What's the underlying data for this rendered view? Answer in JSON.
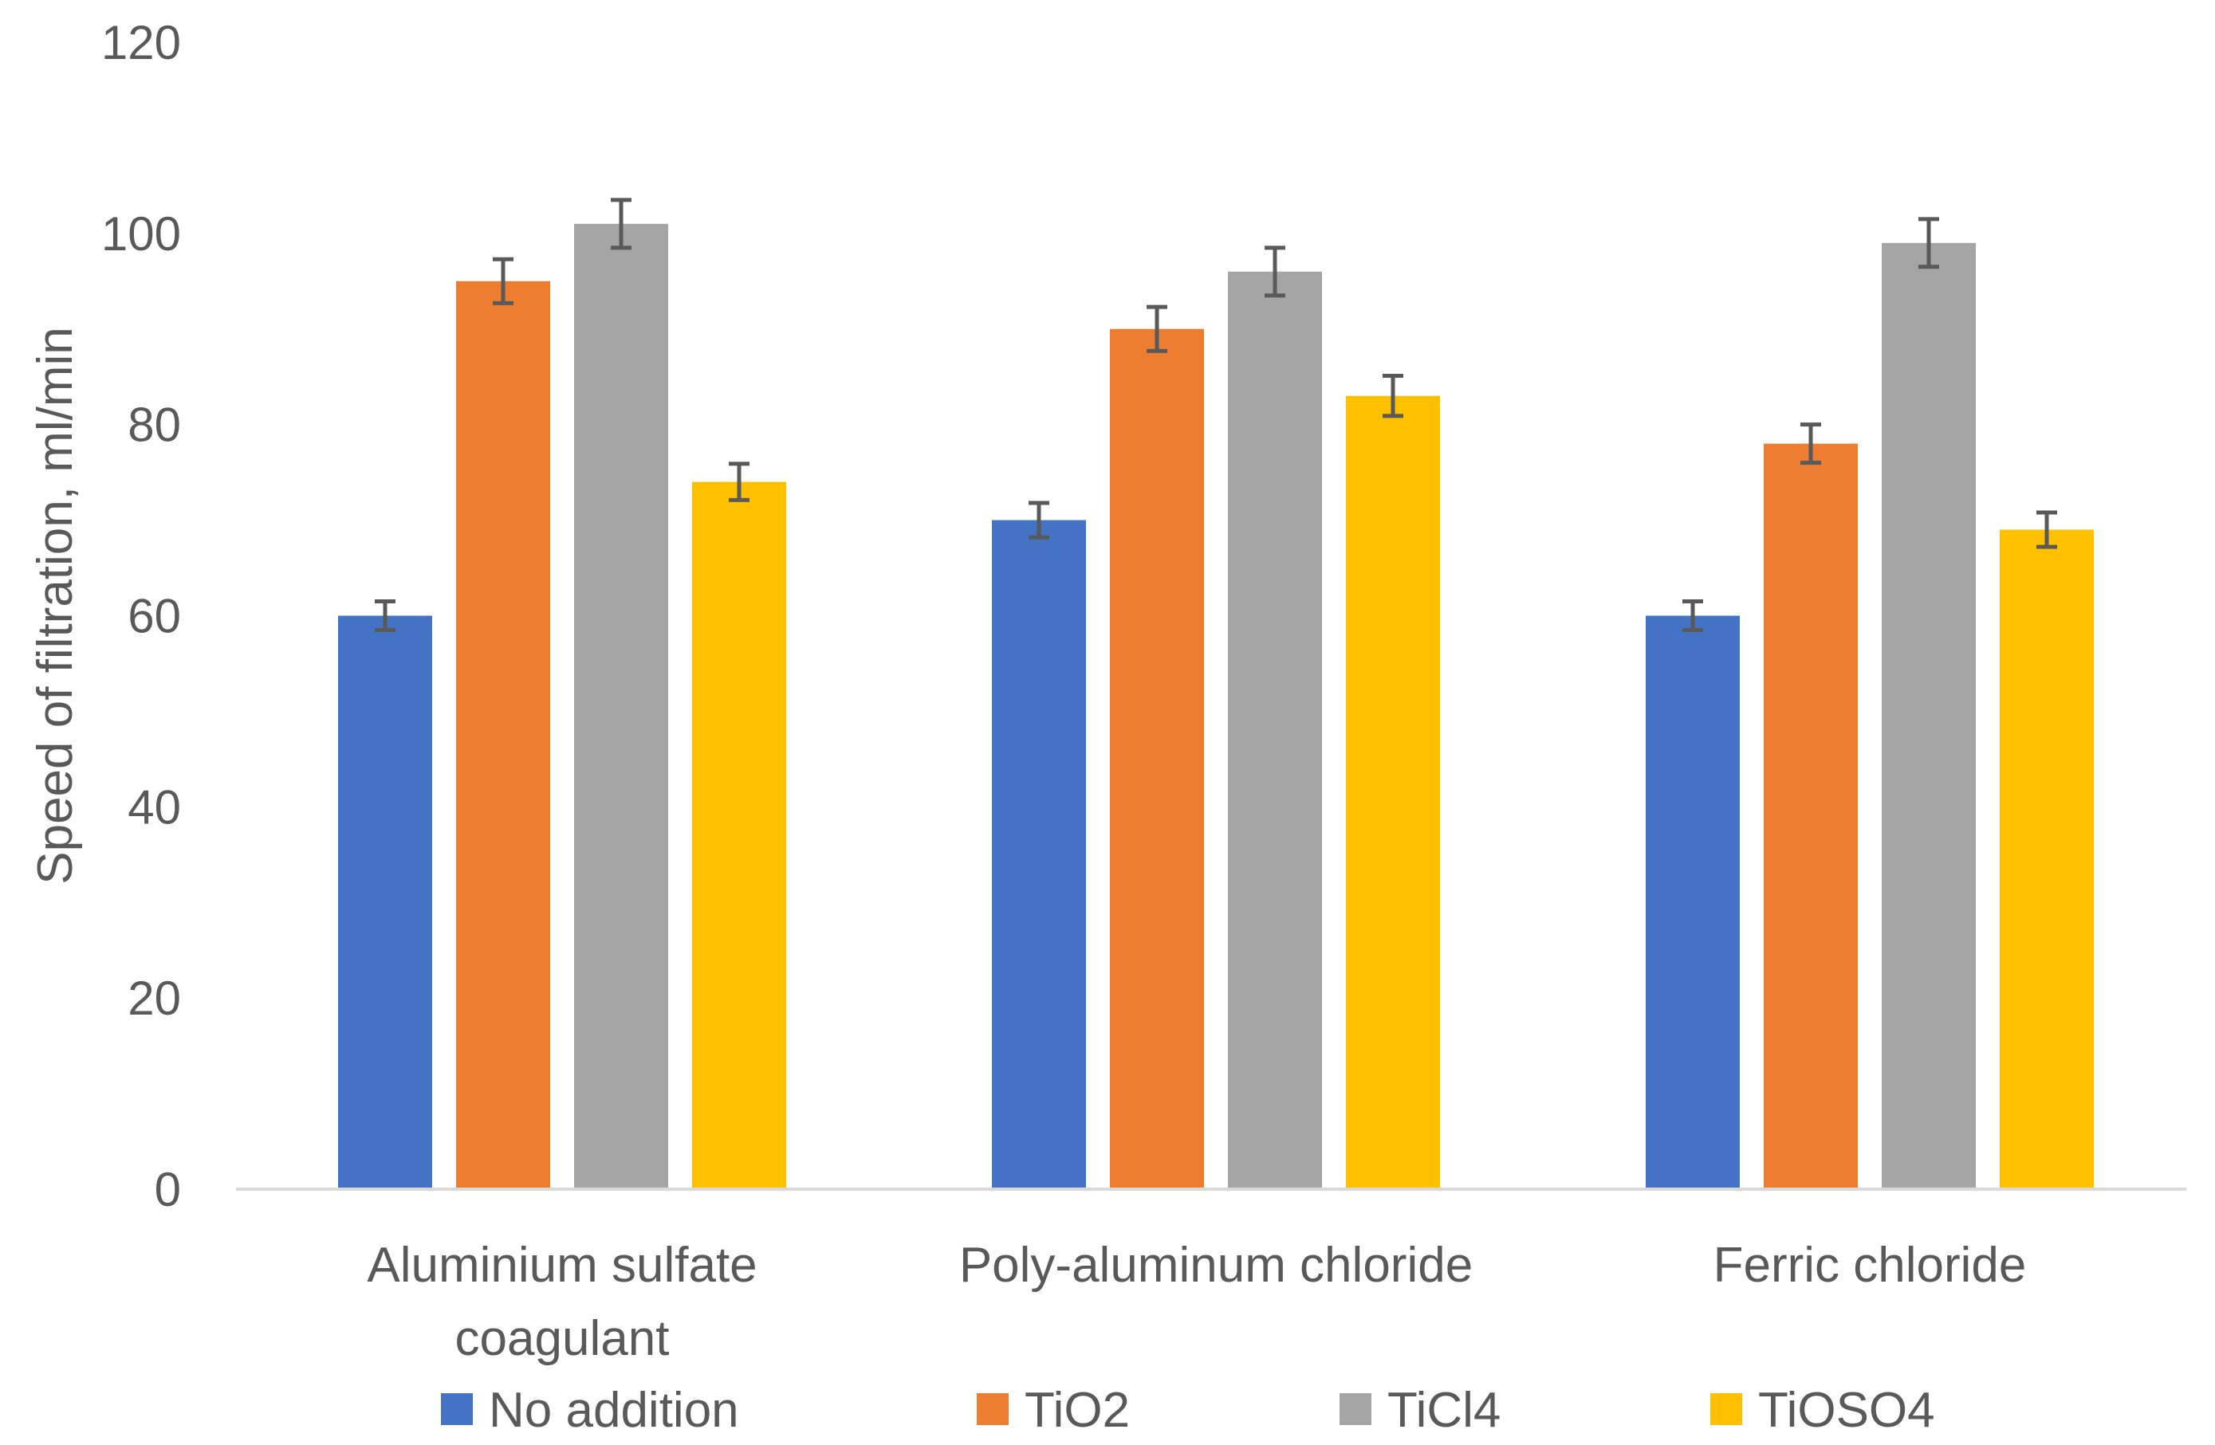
{
  "chart_data": {
    "type": "bar",
    "title": "",
    "xlabel": "",
    "ylabel": "Speed of filtration, ml/min",
    "ylim": [
      0,
      120
    ],
    "yticks": [
      "0",
      "20",
      "40",
      "60",
      "80",
      "100",
      "120"
    ],
    "grid": false,
    "legend_position": "bottom",
    "categories": [
      {
        "line1": "Aluminium sulfate",
        "line2": "coagulant"
      },
      {
        "line1": "Poly-aluminum chloride",
        "line2": ""
      },
      {
        "line1": "Ferric chloride",
        "line2": ""
      }
    ],
    "series": [
      {
        "name": "No addition",
        "color": "#4472C4",
        "values": [
          60,
          70,
          60
        ],
        "errors": [
          1.5,
          1.8,
          1.5
        ]
      },
      {
        "name": "TiO2",
        "color": "#ED7D31",
        "values": [
          95,
          90,
          78
        ],
        "errors": [
          2.3,
          2.3,
          2.0
        ]
      },
      {
        "name": "TiCl4",
        "color": "#A5A5A5",
        "values": [
          101,
          96,
          99
        ],
        "errors": [
          2.5,
          2.5,
          2.5
        ]
      },
      {
        "name": "TiOSO4",
        "color": "#FFC000",
        "values": [
          74,
          83,
          69
        ],
        "errors": [
          1.9,
          2.1,
          1.8
        ]
      }
    ]
  }
}
